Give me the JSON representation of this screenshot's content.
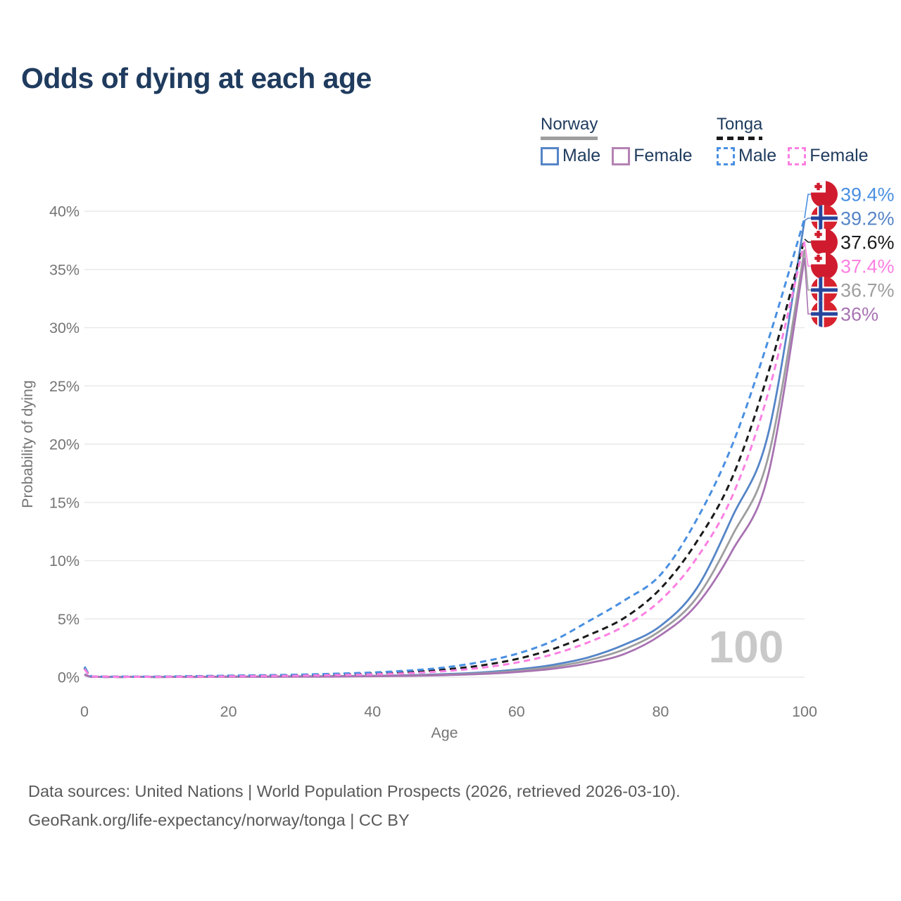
{
  "title": "Odds of dying at each age",
  "legend": {
    "groups": [
      {
        "country": "Norway",
        "line_style": "solid",
        "underline_color": "#9e9e9e",
        "items": [
          {
            "label": "Male",
            "color": "#5585c7"
          },
          {
            "label": "Female",
            "color": "#b482b4"
          }
        ]
      },
      {
        "country": "Tonga",
        "line_style": "dashed",
        "underline_color": "#1a1a1a",
        "items": [
          {
            "label": "Male",
            "color": "#4a90e2"
          },
          {
            "label": "Female",
            "color": "#fc80e2"
          }
        ]
      }
    ]
  },
  "watermark": "100",
  "footer": {
    "line1": "Data sources: United Nations | World Population Prospects (2026, retrieved 2026-03-10).",
    "line2": "GeoRank.org/life-expectancy/norway/tonga | CC BY"
  },
  "chart_data": {
    "type": "line",
    "title": "Odds of dying at each age",
    "xlabel": "Age",
    "ylabel": "Probability of dying",
    "xlim": [
      0,
      100
    ],
    "ylim_percent": [
      0,
      40
    ],
    "grid": "horizontal",
    "legend_position": "top-right",
    "xticks": [
      {
        "label": "0",
        "value": 0
      },
      {
        "label": "20",
        "value": 20
      },
      {
        "label": "40",
        "value": 40
      },
      {
        "label": "60",
        "value": 60
      },
      {
        "label": "80",
        "value": 80
      },
      {
        "label": "100",
        "value": 100
      }
    ],
    "yticks": [
      {
        "label": "0%",
        "value": 0
      },
      {
        "label": "5%",
        "value": 5
      },
      {
        "label": "10%",
        "value": 10
      },
      {
        "label": "15%",
        "value": 15
      },
      {
        "label": "20%",
        "value": 20
      },
      {
        "label": "25%",
        "value": 25
      },
      {
        "label": "30%",
        "value": 30
      },
      {
        "label": "35%",
        "value": 35
      },
      {
        "label": "40%",
        "value": 40
      }
    ],
    "series": [
      {
        "id": "norway_male",
        "name": "Norway Male",
        "color": "#5585c7",
        "dash": false,
        "points": [
          [
            0,
            0.25
          ],
          [
            1,
            0.03
          ],
          [
            3,
            0.01
          ],
          [
            5,
            0.01
          ],
          [
            10,
            0.01
          ],
          [
            15,
            0.03
          ],
          [
            20,
            0.05
          ],
          [
            25,
            0.06
          ],
          [
            30,
            0.07
          ],
          [
            35,
            0.09
          ],
          [
            40,
            0.12
          ],
          [
            45,
            0.17
          ],
          [
            50,
            0.26
          ],
          [
            55,
            0.4
          ],
          [
            60,
            0.65
          ],
          [
            65,
            1.05
          ],
          [
            70,
            1.7
          ],
          [
            75,
            2.8
          ],
          [
            80,
            4.4
          ],
          [
            85,
            7.6
          ],
          [
            90,
            13.8
          ],
          [
            95,
            21.0
          ],
          [
            100,
            39.2
          ]
        ]
      },
      {
        "id": "norway_total",
        "name": "Norway Both sexes",
        "color": "#9e9e9e",
        "dash": false,
        "points": [
          [
            0,
            0.22
          ],
          [
            1,
            0.02
          ],
          [
            3,
            0.01
          ],
          [
            5,
            0.01
          ],
          [
            10,
            0.01
          ],
          [
            15,
            0.02
          ],
          [
            20,
            0.04
          ],
          [
            25,
            0.05
          ],
          [
            30,
            0.06
          ],
          [
            35,
            0.07
          ],
          [
            40,
            0.1
          ],
          [
            45,
            0.14
          ],
          [
            50,
            0.21
          ],
          [
            55,
            0.33
          ],
          [
            60,
            0.54
          ],
          [
            65,
            0.88
          ],
          [
            70,
            1.45
          ],
          [
            75,
            2.4
          ],
          [
            80,
            4.0
          ],
          [
            85,
            6.8
          ],
          [
            90,
            12.2
          ],
          [
            95,
            19.0
          ],
          [
            100,
            36.7
          ]
        ]
      },
      {
        "id": "norway_female",
        "name": "Norway Female",
        "color": "#a873b2",
        "dash": false,
        "points": [
          [
            0,
            0.2
          ],
          [
            1,
            0.02
          ],
          [
            3,
            0.01
          ],
          [
            5,
            0.01
          ],
          [
            10,
            0.01
          ],
          [
            15,
            0.02
          ],
          [
            20,
            0.03
          ],
          [
            25,
            0.03
          ],
          [
            30,
            0.04
          ],
          [
            35,
            0.05
          ],
          [
            40,
            0.08
          ],
          [
            45,
            0.11
          ],
          [
            50,
            0.17
          ],
          [
            55,
            0.27
          ],
          [
            60,
            0.44
          ],
          [
            65,
            0.72
          ],
          [
            70,
            1.2
          ],
          [
            75,
            2.0
          ],
          [
            80,
            3.6
          ],
          [
            85,
            6.2
          ],
          [
            90,
            10.9
          ],
          [
            95,
            17.5
          ],
          [
            100,
            36.0
          ]
        ]
      },
      {
        "id": "tonga_total",
        "name": "Tonga Both sexes",
        "color": "#1a1a1a",
        "dash": true,
        "points": [
          [
            0,
            0.8
          ],
          [
            1,
            0.07
          ],
          [
            3,
            0.04
          ],
          [
            5,
            0.04
          ],
          [
            10,
            0.04
          ],
          [
            15,
            0.07
          ],
          [
            20,
            0.1
          ],
          [
            25,
            0.13
          ],
          [
            30,
            0.17
          ],
          [
            35,
            0.23
          ],
          [
            40,
            0.31
          ],
          [
            45,
            0.44
          ],
          [
            50,
            0.65
          ],
          [
            55,
            1.0
          ],
          [
            60,
            1.55
          ],
          [
            65,
            2.4
          ],
          [
            70,
            3.6
          ],
          [
            75,
            5.1
          ],
          [
            80,
            7.6
          ],
          [
            85,
            11.6
          ],
          [
            90,
            17.2
          ],
          [
            95,
            26.2
          ],
          [
            100,
            37.6
          ]
        ]
      },
      {
        "id": "tonga_male",
        "name": "Tonga Male",
        "color": "#4a90e2",
        "dash": true,
        "points": [
          [
            0,
            0.9
          ],
          [
            1,
            0.08
          ],
          [
            3,
            0.05
          ],
          [
            5,
            0.05
          ],
          [
            10,
            0.05
          ],
          [
            15,
            0.09
          ],
          [
            20,
            0.13
          ],
          [
            25,
            0.17
          ],
          [
            30,
            0.22
          ],
          [
            35,
            0.3
          ],
          [
            40,
            0.4
          ],
          [
            45,
            0.57
          ],
          [
            50,
            0.83
          ],
          [
            55,
            1.3
          ],
          [
            60,
            2.0
          ],
          [
            65,
            3.1
          ],
          [
            70,
            4.8
          ],
          [
            75,
            6.6
          ],
          [
            80,
            8.8
          ],
          [
            85,
            13.5
          ],
          [
            90,
            20.0
          ],
          [
            95,
            29.0
          ],
          [
            100,
            39.4
          ]
        ]
      },
      {
        "id": "tonga_female",
        "name": "Tonga Female",
        "color": "#fc80e2",
        "dash": true,
        "points": [
          [
            0,
            0.7
          ],
          [
            1,
            0.06
          ],
          [
            3,
            0.04
          ],
          [
            5,
            0.03
          ],
          [
            10,
            0.03
          ],
          [
            15,
            0.05
          ],
          [
            20,
            0.07
          ],
          [
            25,
            0.1
          ],
          [
            30,
            0.13
          ],
          [
            35,
            0.18
          ],
          [
            40,
            0.24
          ],
          [
            45,
            0.34
          ],
          [
            50,
            0.52
          ],
          [
            55,
            0.8
          ],
          [
            60,
            1.25
          ],
          [
            65,
            1.95
          ],
          [
            70,
            3.0
          ],
          [
            75,
            4.4
          ],
          [
            80,
            6.6
          ],
          [
            85,
            10.2
          ],
          [
            90,
            15.6
          ],
          [
            95,
            24.5
          ],
          [
            100,
            37.4
          ]
        ]
      }
    ],
    "end_labels": [
      {
        "series": "tonga_male",
        "text": "39.4%",
        "value": 39.4,
        "color": "#4a90e2",
        "flag": "tonga"
      },
      {
        "series": "norway_male",
        "text": "39.2%",
        "value": 39.2,
        "color": "#5585c7",
        "flag": "norway"
      },
      {
        "series": "tonga_total",
        "text": "37.6%",
        "value": 37.6,
        "color": "#1a1a1a",
        "flag": "tonga"
      },
      {
        "series": "tonga_female",
        "text": "37.4%",
        "value": 37.4,
        "color": "#fc80e2",
        "flag": "tonga"
      },
      {
        "series": "norway_total",
        "text": "36.7%",
        "value": 36.7,
        "color": "#9e9e9e",
        "flag": "norway"
      },
      {
        "series": "norway_female",
        "text": "36%",
        "value": 36.0,
        "color": "#a873b2",
        "flag": "norway"
      }
    ]
  }
}
